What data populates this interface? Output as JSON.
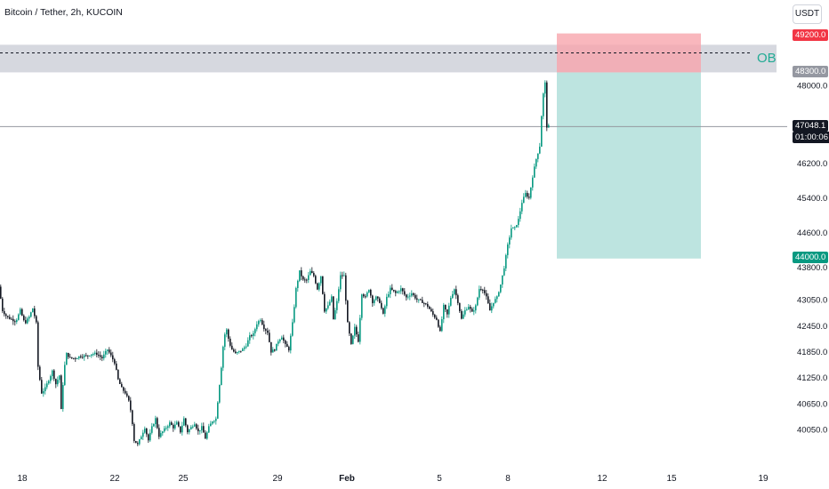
{
  "header": {
    "title": "Bitcoin / Tether, 2h, KUCOIN",
    "currency": "USDT"
  },
  "annotations": {
    "ob_label": "OB",
    "stop_label": "49200.0",
    "ob_level_label": "48300.0",
    "last_price": "47048.1",
    "countdown": "01:00:06",
    "target_label": "44000.0"
  },
  "colors": {
    "up": "#089981",
    "down": "#131722",
    "ob_zone": "#d1d4dc",
    "stop_zone": "#f7a5ac",
    "target_zone": "#b2dfdb",
    "ob_text": "#22ab94"
  },
  "chart_data": {
    "type": "candlestick",
    "title": "Bitcoin / Tether, 2h, KUCOIN",
    "ylim": [
      39700,
      49700
    ],
    "y_ticks": [
      49200,
      48000,
      46200,
      45400,
      44600,
      43800,
      43050,
      42450,
      41850,
      41250,
      40650,
      40050
    ],
    "y_tick_labels": [
      "49200.0",
      "48000.0",
      "46200.0",
      "45400.0",
      "44600.0",
      "43800.0",
      "43050.0",
      "42450.0",
      "41850.0",
      "41250.0",
      "40650.0",
      "40050.0"
    ],
    "x_tick_labels": [
      "18",
      "22",
      "25",
      "29",
      "Feb",
      "5",
      "8",
      "12",
      "15",
      "19"
    ],
    "zones": {
      "order_block": [
        48300,
        49000
      ],
      "stop_loss": [
        48300,
        49200
      ],
      "take_profit": [
        44000,
        48300
      ],
      "ob_line": 48750,
      "current_price": 47048.1
    },
    "path": [
      [
        0,
        43350
      ],
      [
        4,
        42800
      ],
      [
        9,
        42650
      ],
      [
        14,
        42600
      ],
      [
        19,
        42550
      ],
      [
        24,
        42800
      ],
      [
        29,
        42500
      ],
      [
        34,
        42650
      ],
      [
        38,
        42850
      ],
      [
        42,
        42500
      ],
      [
        44,
        41500
      ],
      [
        48,
        40900
      ],
      [
        52,
        41000
      ],
      [
        56,
        41200
      ],
      [
        60,
        41400
      ],
      [
        64,
        41100
      ],
      [
        68,
        41300
      ],
      [
        70,
        40500
      ],
      [
        73,
        41400
      ],
      [
        76,
        41800
      ],
      [
        80,
        41700
      ],
      [
        86,
        41700
      ],
      [
        92,
        41750
      ],
      [
        98,
        41750
      ],
      [
        104,
        41800
      ],
      [
        110,
        41800
      ],
      [
        116,
        41700
      ],
      [
        122,
        41900
      ],
      [
        126,
        41750
      ],
      [
        130,
        41600
      ],
      [
        134,
        41200
      ],
      [
        138,
        41000
      ],
      [
        142,
        40900
      ],
      [
        146,
        40700
      ],
      [
        149,
        40400
      ],
      [
        152,
        39800
      ],
      [
        156,
        39700
      ],
      [
        160,
        39900
      ],
      [
        164,
        40100
      ],
      [
        168,
        39800
      ],
      [
        172,
        40100
      ],
      [
        176,
        40300
      ],
      [
        180,
        39900
      ],
      [
        184,
        40000
      ],
      [
        188,
        40100
      ],
      [
        192,
        40200
      ],
      [
        196,
        40100
      ],
      [
        200,
        40200
      ],
      [
        204,
        40000
      ],
      [
        208,
        40300
      ],
      [
        212,
        40000
      ],
      [
        216,
        40100
      ],
      [
        220,
        40200
      ],
      [
        224,
        40000
      ],
      [
        228,
        40100
      ],
      [
        232,
        39850
      ],
      [
        236,
        40100
      ],
      [
        240,
        40250
      ],
      [
        244,
        40300
      ],
      [
        248,
        41100
      ],
      [
        250,
        41500
      ],
      [
        253,
        42200
      ],
      [
        256,
        42350
      ],
      [
        259,
        42050
      ],
      [
        262,
        41900
      ],
      [
        266,
        41800
      ],
      [
        270,
        41850
      ],
      [
        274,
        41900
      ],
      [
        278,
        42000
      ],
      [
        282,
        42200
      ],
      [
        286,
        42250
      ],
      [
        290,
        42500
      ],
      [
        294,
        42600
      ],
      [
        298,
        42400
      ],
      [
        302,
        42300
      ],
      [
        306,
        41850
      ],
      [
        310,
        41900
      ],
      [
        314,
        42100
      ],
      [
        318,
        42200
      ],
      [
        322,
        42000
      ],
      [
        326,
        41900
      ],
      [
        328,
        42200
      ],
      [
        330,
        42500
      ],
      [
        334,
        43300
      ],
      [
        338,
        43700
      ],
      [
        342,
        43500
      ],
      [
        346,
        43500
      ],
      [
        350,
        43700
      ],
      [
        354,
        43600
      ],
      [
        358,
        43300
      ],
      [
        362,
        43600
      ],
      [
        366,
        42800
      ],
      [
        370,
        42900
      ],
      [
        374,
        43100
      ],
      [
        376,
        42600
      ],
      [
        380,
        43000
      ],
      [
        384,
        43600
      ],
      [
        388,
        43600
      ],
      [
        392,
        42500
      ],
      [
        396,
        42000
      ],
      [
        400,
        42400
      ],
      [
        404,
        42100
      ],
      [
        408,
        43200
      ],
      [
        412,
        43100
      ],
      [
        416,
        43300
      ],
      [
        420,
        43000
      ],
      [
        424,
        43100
      ],
      [
        428,
        43000
      ],
      [
        432,
        42700
      ],
      [
        436,
        43100
      ],
      [
        440,
        43300
      ],
      [
        446,
        43200
      ],
      [
        452,
        43300
      ],
      [
        458,
        43100
      ],
      [
        464,
        43200
      ],
      [
        470,
        43050
      ],
      [
        476,
        43000
      ],
      [
        482,
        42900
      ],
      [
        488,
        42700
      ],
      [
        492,
        42600
      ],
      [
        496,
        42300
      ],
      [
        500,
        42900
      ],
      [
        504,
        42700
      ],
      [
        508,
        43100
      ],
      [
        512,
        43300
      ],
      [
        516,
        43000
      ],
      [
        520,
        42600
      ],
      [
        524,
        42800
      ],
      [
        528,
        42900
      ],
      [
        532,
        42750
      ],
      [
        536,
        42900
      ],
      [
        540,
        43300
      ],
      [
        544,
        43300
      ],
      [
        548,
        43100
      ],
      [
        552,
        42800
      ],
      [
        556,
        43000
      ],
      [
        560,
        43100
      ],
      [
        564,
        43400
      ],
      [
        568,
        43800
      ],
      [
        572,
        44300
      ],
      [
        576,
        44700
      ],
      [
        580,
        44700
      ],
      [
        584,
        44900
      ],
      [
        588,
        45300
      ],
      [
        592,
        45500
      ],
      [
        596,
        45400
      ],
      [
        600,
        45900
      ],
      [
        604,
        46300
      ],
      [
        608,
        46600
      ],
      [
        610,
        47300
      ],
      [
        612,
        47800
      ],
      [
        614,
        48050
      ],
      [
        616,
        47048.1
      ]
    ]
  }
}
